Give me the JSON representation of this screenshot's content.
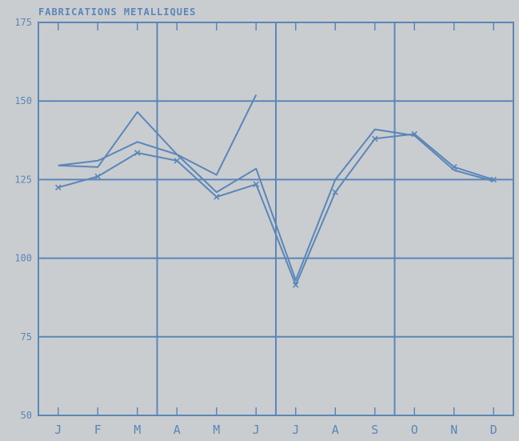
{
  "chart_data": {
    "type": "line",
    "title": "FABRICATIONS METALLIQUES",
    "categories": [
      "J",
      "F",
      "M",
      "A",
      "M",
      "J",
      "J",
      "A",
      "S",
      "O",
      "N",
      "D"
    ],
    "ylim": [
      50,
      175
    ],
    "yticks": [
      50,
      75,
      100,
      125,
      150,
      175
    ],
    "grid": true,
    "series": [
      {
        "values": [
          129.5,
          129,
          146.5,
          133,
          126.5,
          152,
          null,
          null,
          null,
          null,
          null,
          null
        ]
      },
      {
        "values": [
          129.5,
          131,
          137,
          133,
          121,
          128.5,
          93,
          125,
          141,
          139,
          128,
          124.5
        ]
      },
      {
        "values": [
          122.5,
          126,
          133.5,
          131,
          119.5,
          123.5,
          91.5,
          121,
          138,
          139.5,
          129,
          125
        ]
      }
    ],
    "colors": {
      "line": "#5b86b8",
      "grid": "#5b86b8",
      "background": "#c9cdd0"
    }
  }
}
